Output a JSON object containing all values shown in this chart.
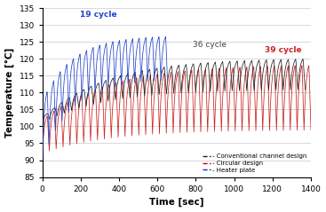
{
  "xlabel": "Time [sec]",
  "ylabel": "Temperature [°C]",
  "xlim": [
    0,
    1400
  ],
  "ylim": [
    85,
    135
  ],
  "yticks": [
    85,
    90,
    95,
    100,
    105,
    110,
    115,
    120,
    125,
    130,
    135
  ],
  "xticks": [
    0,
    200,
    400,
    600,
    800,
    1000,
    1200,
    1400
  ],
  "blue_label": "19 cycle",
  "black_label": "36 cycle",
  "red_label": "39 cycle",
  "legend_entries": [
    {
      "label": "- Conventional channel design",
      "color": "#222222"
    },
    {
      "label": "- Circular design",
      "color": "#cc0000"
    },
    {
      "label": "- Heater plate",
      "color": "#2222cc"
    }
  ],
  "blue_cycles": 19,
  "black_cycles": 36,
  "red_cycles": 39,
  "blue_end_time": 652,
  "black_end_time": 1370,
  "red_end_time": 1400,
  "blue_color": "#2244cc",
  "black_color": "#222222",
  "red_color": "#cc2222",
  "background_color": "#ffffff",
  "grid_color": "#bbbbbb",
  "blue_peak_start": 112,
  "blue_peak_end": 128,
  "blue_trough_start": 90,
  "blue_trough_end": 114,
  "black_peak_start": 104,
  "black_peak_end": 121,
  "black_trough_start": 101,
  "black_trough_end": 111,
  "red_peak_start": 104,
  "red_peak_end": 120,
  "red_trough_start": 92,
  "red_trough_end": 99
}
